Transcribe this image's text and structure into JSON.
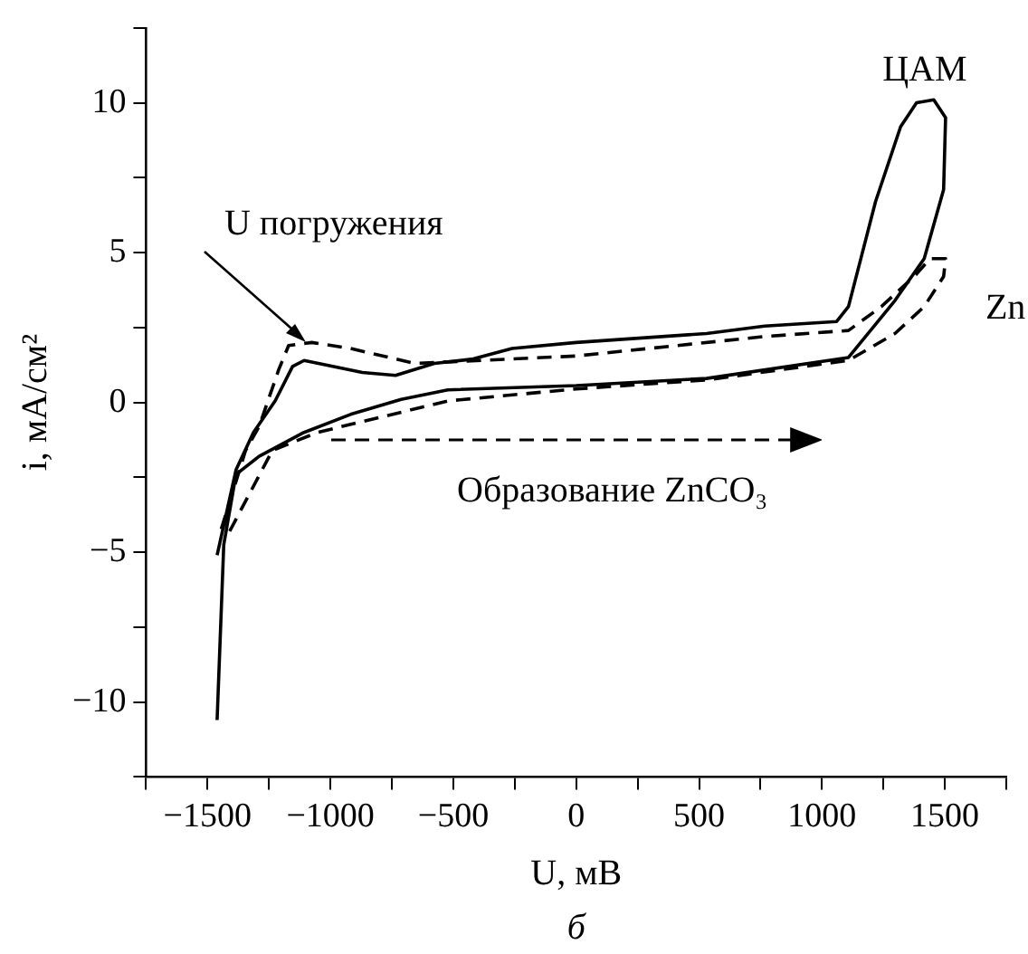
{
  "chart_data": {
    "type": "line",
    "xlabel": "U, мВ",
    "ylabel": "i, мА/см²",
    "xlim": [
      -1750,
      1750
    ],
    "ylim": [
      -12.5,
      12.5
    ],
    "xticks": [
      {
        "value": -1750,
        "label": null
      },
      {
        "value": -1500,
        "label": "−1500"
      },
      {
        "value": -1250,
        "label": null
      },
      {
        "value": -1000,
        "label": "−1000"
      },
      {
        "value": -750,
        "label": null
      },
      {
        "value": -500,
        "label": "−500"
      },
      {
        "value": -250,
        "label": null
      },
      0,
      {
        "value": 250,
        "label": null
      },
      500,
      {
        "value": 750,
        "label": null
      },
      1000,
      {
        "value": 1250,
        "label": null
      },
      1500,
      {
        "value": 1750,
        "label": null
      }
    ],
    "yticks": [
      {
        "value": -12.5,
        "label": null
      },
      {
        "value": -10,
        "label": "−10"
      },
      {
        "value": -7.5,
        "label": null
      },
      {
        "value": -5,
        "label": "−5"
      },
      {
        "value": -2.5,
        "label": null
      },
      0,
      {
        "value": 2.5,
        "label": null
      },
      5,
      {
        "value": 7.5,
        "label": null
      },
      10,
      {
        "value": 12.5,
        "label": null
      }
    ],
    "grid": false,
    "legend": false,
    "marker": "none",
    "annotations": [
      {
        "text": "U погружения",
        "x": -1100,
        "y": 2
      },
      "Образование ZnCO₃",
      "б"
    ],
    "series": [
      {
        "name": "ЦАМ",
        "color": "#000000",
        "line_style": "solid",
        "x": [
          -1461,
          -1434,
          -1384,
          -1290,
          -1107,
          -918,
          -712,
          -522,
          0,
          530,
          1108,
          1297,
          1416,
          1495,
          1503,
          1455,
          1385,
          1320,
          1218,
          1108,
          1060,
          767,
          530,
          0,
          -261,
          -419,
          -577,
          -735,
          -870,
          -1107,
          -1154,
          -1225,
          -1313,
          -1384,
          -1461
        ],
        "values": [
          -10.6,
          -4.75,
          -2.4,
          -1.8,
          -1.0,
          -0.4,
          0.1,
          0.42,
          0.56,
          0.8,
          1.5,
          3.4,
          4.8,
          7.1,
          9.5,
          10.1,
          10.0,
          9.2,
          6.7,
          3.2,
          2.7,
          2.55,
          2.3,
          2.0,
          1.8,
          1.45,
          1.3,
          0.9,
          1.0,
          1.4,
          1.2,
          0.05,
          -1.0,
          -2.25,
          -5.1
        ]
      },
      {
        "name": "Zn",
        "color": "#000000",
        "line_style": "dashed",
        "x": [
          -1410,
          -1236,
          -1052,
          -522,
          0,
          530,
          1108,
          1297,
          1416,
          1495,
          1503,
          1440,
          1375,
          1242,
          1108,
          767,
          0,
          -656,
          -918,
          -1076,
          -1170,
          -1210,
          -1290,
          -1345,
          -1447
        ],
        "values": [
          -4.3,
          -1.6,
          -1.0,
          0.05,
          0.45,
          0.75,
          1.4,
          2.3,
          3.2,
          4.2,
          4.8,
          4.8,
          4.2,
          3.2,
          2.4,
          2.2,
          1.55,
          1.3,
          1.8,
          2.0,
          1.9,
          1.1,
          -0.8,
          -1.6,
          -4.3
        ]
      }
    ]
  }
}
